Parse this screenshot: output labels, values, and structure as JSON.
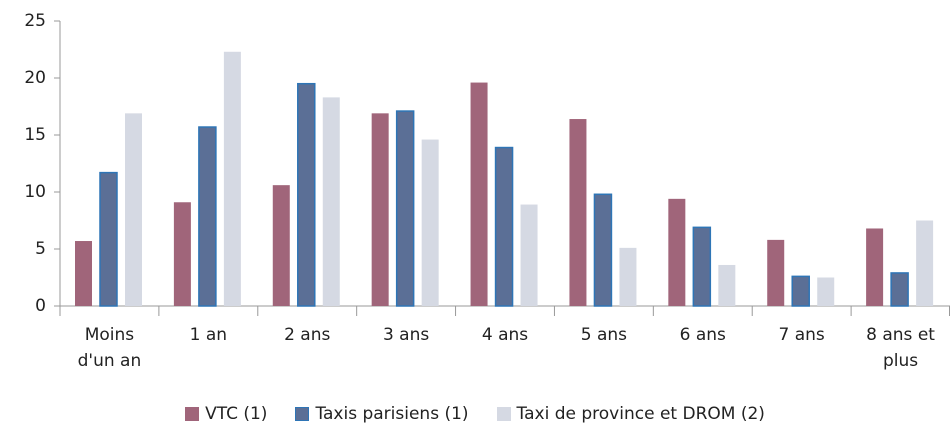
{
  "chart_data": {
    "type": "bar",
    "categories": [
      "Moins d'un an",
      "1 an",
      "2 ans",
      "3 ans",
      "4 ans",
      "5 ans",
      "6 ans",
      "7 ans",
      "8 ans et plus"
    ],
    "series": [
      {
        "name": "VTC (1)",
        "color": "#a0657a",
        "values": [
          5.7,
          9.1,
          10.6,
          16.9,
          19.6,
          16.4,
          9.4,
          5.8,
          6.8
        ]
      },
      {
        "name": "Taxis parisiens (1)",
        "color": "#5b6f96",
        "stroke": "#2e75b6",
        "values": [
          11.7,
          15.7,
          19.5,
          17.1,
          13.9,
          9.8,
          6.9,
          2.6,
          2.9
        ]
      },
      {
        "name": "Taxi de province et DROM (2)",
        "color": "#d5d9e3",
        "values": [
          16.9,
          22.3,
          18.3,
          14.6,
          8.9,
          5.1,
          3.6,
          2.5,
          7.5
        ]
      }
    ],
    "ylim": [
      0,
      25
    ],
    "yticks": [
      0,
      5,
      10,
      15,
      20,
      25
    ],
    "grid": false,
    "legend": "bottom"
  }
}
